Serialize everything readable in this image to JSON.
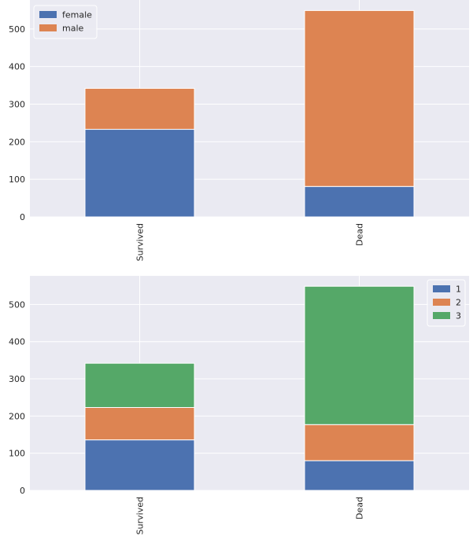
{
  "chart_data": [
    {
      "type": "bar",
      "stacked": true,
      "categories": [
        "Survived",
        "Dead"
      ],
      "series": [
        {
          "name": "female",
          "values": [
            233,
            81
          ],
          "color": "#4c72b0"
        },
        {
          "name": "male",
          "values": [
            109,
            468
          ],
          "color": "#dd8452"
        }
      ],
      "ylim": [
        0,
        577
      ],
      "yticks": [
        0,
        100,
        200,
        300,
        400,
        500
      ],
      "grid": true,
      "legend": "top-left"
    },
    {
      "type": "bar",
      "stacked": true,
      "categories": [
        "Survived",
        "Dead"
      ],
      "series": [
        {
          "name": "1",
          "values": [
            136,
            80
          ],
          "color": "#4c72b0"
        },
        {
          "name": "2",
          "values": [
            87,
            97
          ],
          "color": "#dd8452"
        },
        {
          "name": "3",
          "values": [
            119,
            372
          ],
          "color": "#55a868"
        }
      ],
      "ylim": [
        0,
        577
      ],
      "yticks": [
        0,
        100,
        200,
        300,
        400,
        500
      ],
      "grid": true,
      "legend": "top-right"
    }
  ]
}
